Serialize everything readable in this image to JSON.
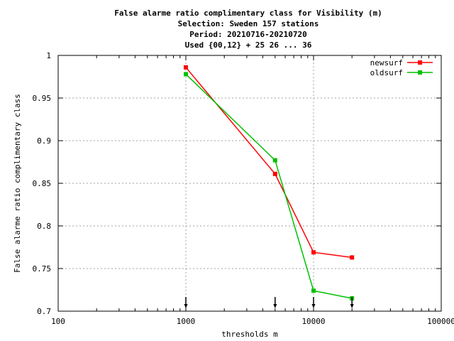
{
  "chart_data": {
    "type": "line",
    "title_lines": [
      "False alarme ratio complimentary class  for Visibility (m)",
      "Selection: Sweden    157 stations",
      "Period: 20210716-20210720",
      "Used {00,12} + 25 26 ... 36"
    ],
    "xlabel": "thresholds m",
    "ylabel": "False alarme ratio complimentary class",
    "x_scale": "log",
    "xlim": [
      100,
      100000
    ],
    "ylim": [
      0.7,
      1.0
    ],
    "x_ticks": [
      100,
      1000,
      10000,
      100000
    ],
    "x_tick_labels": [
      "100",
      "1000",
      "10000",
      "100000"
    ],
    "y_ticks": [
      0.7,
      0.75,
      0.8,
      0.85,
      0.9,
      0.95,
      1.0
    ],
    "y_tick_labels": [
      "0.7",
      "0.75",
      "0.8",
      "0.85",
      "0.9",
      "0.95",
      "1"
    ],
    "grid": true,
    "legend_position": "top-right",
    "arrow_markers_x": [
      1000,
      5000,
      10000,
      20000
    ],
    "series": [
      {
        "name": "newsurf",
        "color": "#ff0000",
        "x": [
          1000,
          5000,
          10000,
          20000
        ],
        "y": [
          0.986,
          0.861,
          0.769,
          0.763
        ]
      },
      {
        "name": "oldsurf",
        "color": "#00c000",
        "x": [
          1000,
          5000,
          10000,
          20000
        ],
        "y": [
          0.978,
          0.877,
          0.724,
          0.715
        ]
      }
    ]
  }
}
